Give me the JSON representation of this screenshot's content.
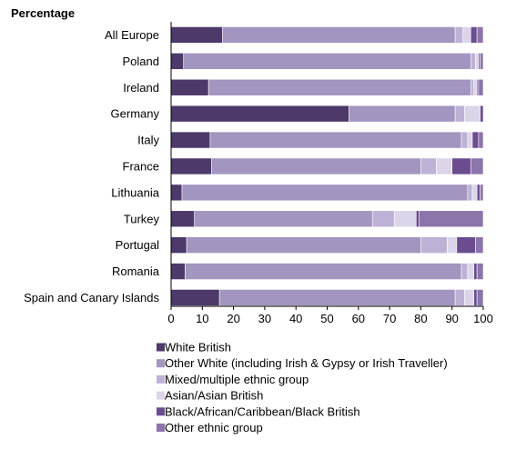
{
  "chart_data": {
    "type": "bar",
    "orientation": "horizontal",
    "stacked": true,
    "ylabel": "Percentage",
    "categories": [
      "All Europe",
      "Poland",
      "Ireland",
      "Germany",
      "Italy",
      "France",
      "Lithuania",
      "Turkey",
      "Portugal",
      "Romania",
      "Spain and  Canary Islands"
    ],
    "xlim": [
      0,
      100
    ],
    "xticks": [
      0,
      10,
      20,
      30,
      40,
      50,
      60,
      70,
      80,
      90,
      100
    ],
    "grid": false,
    "legend_position": "bottom-left",
    "series": [
      {
        "name": "White British",
        "color": "#4d3a6b",
        "values": [
          16.5,
          4,
          12,
          57,
          12.5,
          13,
          3.5,
          7.5,
          5,
          4.5,
          15.5
        ]
      },
      {
        "name": "Other White (including Irish & Gypsy or Irish Traveller)",
        "color": "#a295bf",
        "values": [
          74.5,
          92,
          84,
          34,
          80.5,
          67,
          91.5,
          57,
          75,
          88.5,
          75.5
        ]
      },
      {
        "name": "Mixed/multiple ethnic group",
        "color": "#bdb2d6",
        "values": [
          2.5,
          1.5,
          1,
          3,
          2,
          5,
          1.5,
          7,
          8.5,
          2,
          3
        ]
      },
      {
        "name": "Asian/Asian British",
        "color": "#dcd5ea",
        "values": [
          2.5,
          1,
          1,
          5,
          1.5,
          5,
          1.5,
          7,
          3,
          2,
          3
        ]
      },
      {
        "name": "Black/African/Caribbean/Black British",
        "color": "#6a4c8f",
        "values": [
          2,
          0.5,
          0.5,
          1,
          2,
          6,
          1,
          1,
          6,
          1,
          1
        ]
      },
      {
        "name": "Other ethnic group",
        "color": "#8c75aa",
        "values": [
          2,
          1,
          1.5,
          0,
          1.5,
          4,
          1,
          20.5,
          2.5,
          2,
          2
        ]
      }
    ]
  }
}
